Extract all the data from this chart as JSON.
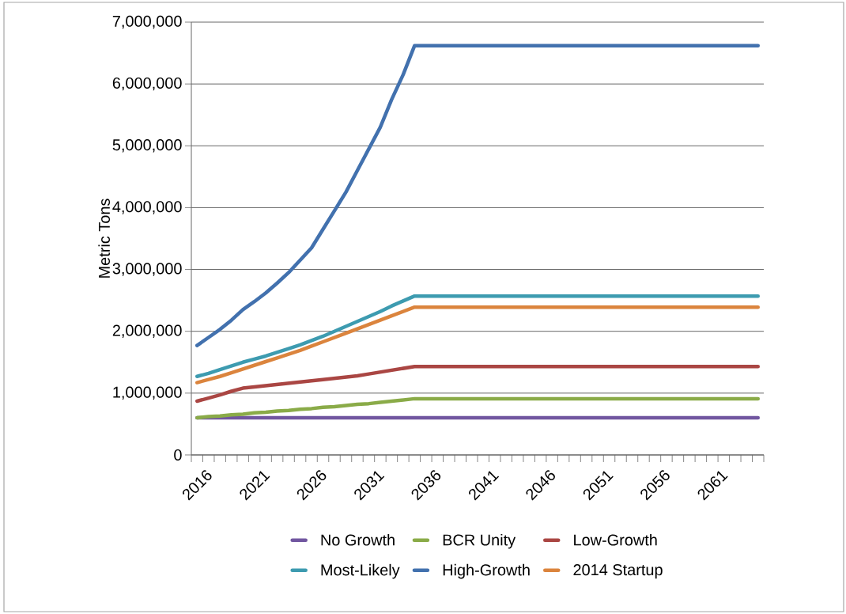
{
  "chart_data": {
    "type": "line",
    "ylabel": "Metric Tons",
    "categories": [
      "2016",
      null,
      null,
      null,
      null,
      "2021",
      null,
      null,
      null,
      null,
      "2026",
      null,
      null,
      null,
      null,
      "2031",
      null,
      null,
      null,
      null,
      "2036",
      null,
      null,
      null,
      null,
      "2041",
      null,
      null,
      null,
      null,
      "2046",
      null,
      null,
      null,
      null,
      "2051",
      null,
      null,
      null,
      null,
      "2056",
      null,
      null,
      null,
      null,
      "2061",
      null,
      null,
      null,
      null
    ],
    "ylim": [
      0,
      7000000
    ],
    "yticks": [
      0,
      {
        "value": 1000000,
        "label": "1,000,000"
      },
      {
        "value": 2000000,
        "label": "2,000,000"
      },
      {
        "value": 3000000,
        "label": "3,000,000"
      },
      {
        "value": 4000000,
        "label": "4,000,000"
      },
      {
        "value": 5000000,
        "label": "5,000,000"
      },
      {
        "value": 6000000,
        "label": "6,000,000"
      },
      {
        "value": 7000000,
        "label": "7,000,000"
      }
    ],
    "grid": "y",
    "legend": "bottom",
    "series": [
      {
        "name": "No Growth",
        "color": "#7156a0",
        "values": [
          600000,
          600000,
          600000,
          600000,
          600000,
          600000,
          600000,
          600000,
          600000,
          600000,
          600000,
          600000,
          600000,
          600000,
          600000,
          600000,
          600000,
          600000,
          600000,
          600000,
          600000,
          600000,
          600000,
          600000,
          600000,
          600000,
          600000,
          600000,
          600000,
          600000,
          600000,
          600000,
          600000,
          600000,
          600000,
          600000,
          600000,
          600000,
          600000,
          600000,
          600000,
          600000,
          600000,
          600000,
          600000,
          600000,
          600000,
          600000,
          600000,
          600000
        ]
      },
      {
        "name": "BCR Unity",
        "color": "#8aab48",
        "values": [
          600000,
          620000,
          630000,
          650000,
          660000,
          680000,
          690000,
          710000,
          720000,
          740000,
          750000,
          770000,
          780000,
          800000,
          820000,
          830000,
          850000,
          870000,
          890000,
          910000,
          910000,
          910000,
          910000,
          910000,
          910000,
          910000,
          910000,
          910000,
          910000,
          910000,
          910000,
          910000,
          910000,
          910000,
          910000,
          910000,
          910000,
          910000,
          910000,
          910000,
          910000,
          910000,
          910000,
          910000,
          910000,
          910000,
          910000,
          910000,
          910000,
          910000
        ]
      },
      {
        "name": "Low-Growth",
        "color": "#aa4643",
        "values": [
          870000,
          920000,
          970000,
          1030000,
          1080000,
          1100000,
          1120000,
          1140000,
          1160000,
          1180000,
          1200000,
          1220000,
          1240000,
          1260000,
          1280000,
          1310000,
          1340000,
          1370000,
          1400000,
          1430000,
          1430000,
          1430000,
          1430000,
          1430000,
          1430000,
          1430000,
          1430000,
          1430000,
          1430000,
          1430000,
          1430000,
          1430000,
          1430000,
          1430000,
          1430000,
          1430000,
          1430000,
          1430000,
          1430000,
          1430000,
          1430000,
          1430000,
          1430000,
          1430000,
          1430000,
          1430000,
          1430000,
          1430000,
          1430000,
          1430000
        ]
      },
      {
        "name": "Most-Likely",
        "color": "#3d9bb0",
        "values": [
          1270000,
          1320000,
          1380000,
          1440000,
          1500000,
          1550000,
          1600000,
          1660000,
          1720000,
          1780000,
          1850000,
          1920000,
          2000000,
          2080000,
          2160000,
          2240000,
          2320000,
          2410000,
          2490000,
          2570000,
          2570000,
          2570000,
          2570000,
          2570000,
          2570000,
          2570000,
          2570000,
          2570000,
          2570000,
          2570000,
          2570000,
          2570000,
          2570000,
          2570000,
          2570000,
          2570000,
          2570000,
          2570000,
          2570000,
          2570000,
          2570000,
          2570000,
          2570000,
          2570000,
          2570000,
          2570000,
          2570000,
          2570000,
          2570000,
          2570000
        ]
      },
      {
        "name": "High-Growth",
        "color": "#4271ae",
        "values": [
          1770000,
          1900000,
          2030000,
          2180000,
          2350000,
          2480000,
          2620000,
          2780000,
          2950000,
          3150000,
          3350000,
          3650000,
          3950000,
          4250000,
          4600000,
          4950000,
          5300000,
          5750000,
          6150000,
          6620000,
          6620000,
          6620000,
          6620000,
          6620000,
          6620000,
          6620000,
          6620000,
          6620000,
          6620000,
          6620000,
          6620000,
          6620000,
          6620000,
          6620000,
          6620000,
          6620000,
          6620000,
          6620000,
          6620000,
          6620000,
          6620000,
          6620000,
          6620000,
          6620000,
          6620000,
          6620000,
          6620000,
          6620000,
          6620000,
          6620000
        ]
      },
      {
        "name": "2014 Startup",
        "color": "#db843d",
        "values": [
          1170000,
          1220000,
          1270000,
          1330000,
          1390000,
          1450000,
          1510000,
          1570000,
          1630000,
          1690000,
          1760000,
          1830000,
          1900000,
          1970000,
          2040000,
          2110000,
          2180000,
          2250000,
          2320000,
          2390000,
          2390000,
          2390000,
          2390000,
          2390000,
          2390000,
          2390000,
          2390000,
          2390000,
          2390000,
          2390000,
          2390000,
          2390000,
          2390000,
          2390000,
          2390000,
          2390000,
          2390000,
          2390000,
          2390000,
          2390000,
          2390000,
          2390000,
          2390000,
          2390000,
          2390000,
          2390000,
          2390000,
          2390000,
          2390000,
          2390000
        ]
      }
    ]
  }
}
